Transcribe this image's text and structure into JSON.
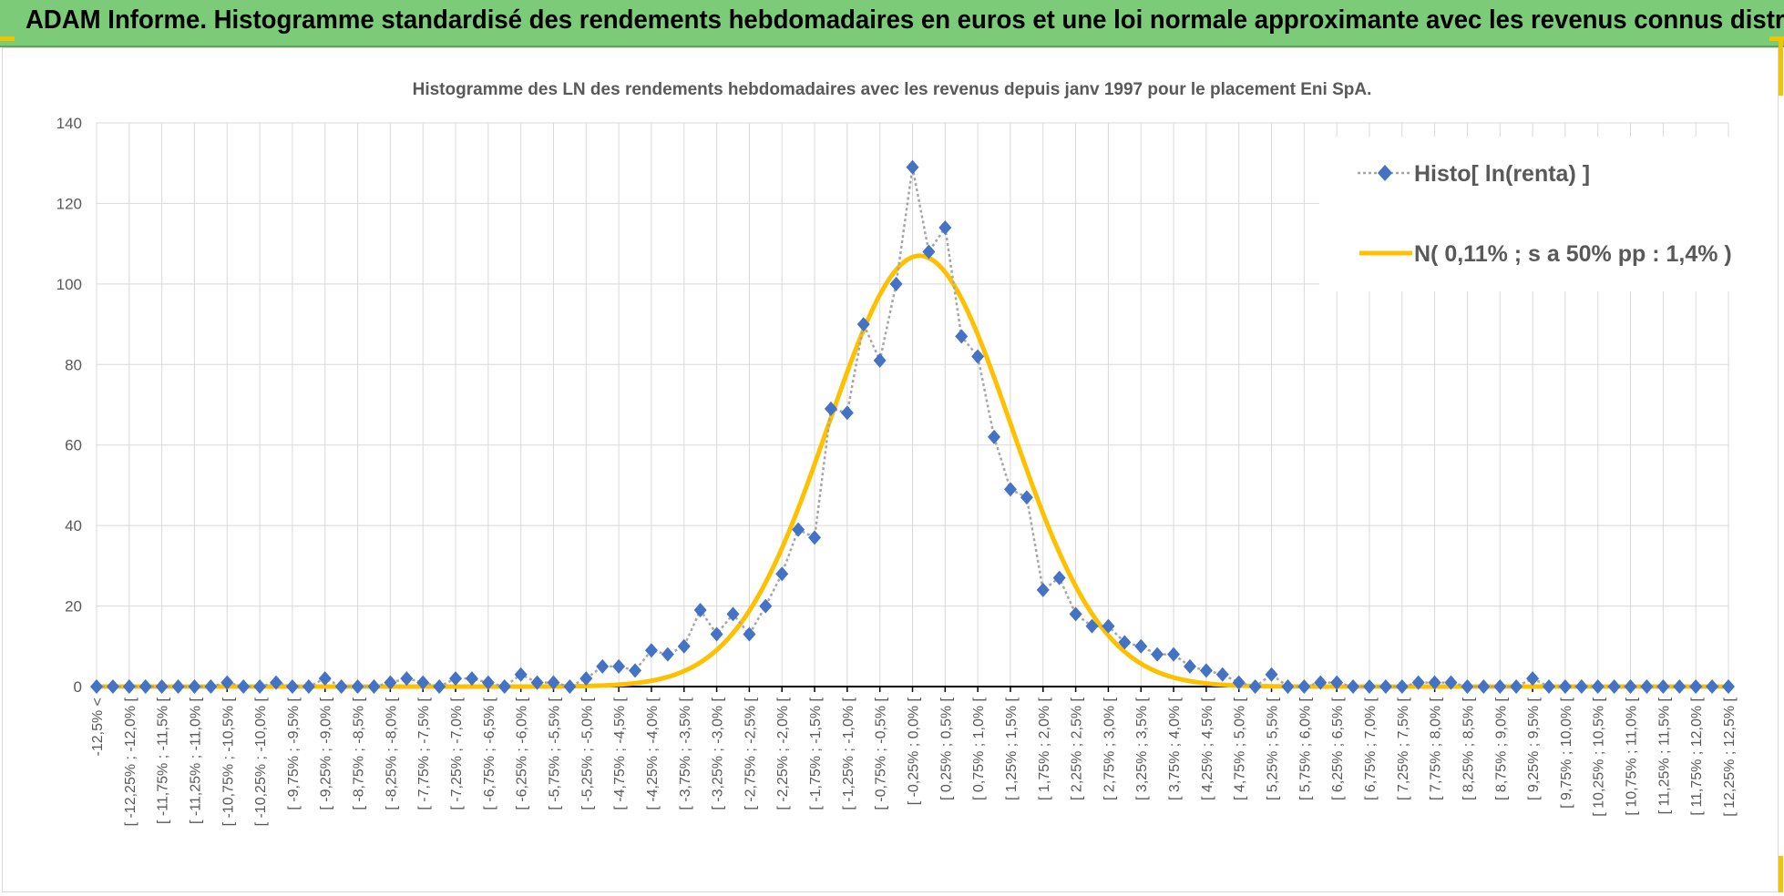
{
  "header": {
    "title": "ADAM Informe. Histogramme standardisé des rendements hebdomadaires en euros et une loi normale approximante avec les revenus connus distribués"
  },
  "colors": {
    "header_bg": "#7ccb79",
    "histo": "#4472c4",
    "normal": "#ffc000",
    "grid": "#d9d9d9",
    "axis": "#000000",
    "text": "#595959"
  },
  "chart_data": {
    "type": "line",
    "title": "Histogramme des LN des rendements hebdomadaires avec les revenus depuis janv 1997 pour le placement Eni SpA.",
    "xlabel": "",
    "ylabel": "",
    "ylim": [
      0,
      140
    ],
    "yticks": [
      0,
      20,
      40,
      60,
      80,
      100,
      120,
      140
    ],
    "grid": true,
    "legend_position": "top-right",
    "categories": [
      "-12,5% <",
      "[ -12,25% ; -12,0% [",
      "[ -11,75% ; -11,5% [",
      "[ -11,25% ; -11,0% [",
      "[ -10,75% ; -10,5% [",
      "[ -10,25% ; -10,0% [",
      "[ -9,75% ; -9,5% [",
      "[ -9,25% ; -9,0% [",
      "[ -8,75% ; -8,5% [",
      "[ -8,25% ; -8,0% [",
      "[ -7,75% ; -7,5% [",
      "[ -7,25% ; -7,0% [",
      "[ -6,75% ; -6,5% [",
      "[ -6,25% ; -6,0% [",
      "[ -5,75% ; -5,5% [",
      "[ -5,25% ; -5,0% [",
      "[ -4,75% ; -4,5% [",
      "[ -4,25% ; -4,0% [",
      "[ -3,75% ; -3,5% [",
      "[ -3,25% ; -3,0% [",
      "[ -2,75% ; -2,5% [",
      "[ -2,25% ; -2,0% [",
      "[ -1,75% ; -1,5% [",
      "[ -1,25% ; -1,0% [",
      "[ -0,75% ; -0,5% [",
      "[ -0,25% ; 0,0% [",
      "[ 0,25% ; 0,5% [",
      "[ 0,75% ; 1,0% [",
      "[ 1,25% ; 1,5% [",
      "[ 1,75% ; 2,0% [",
      "[ 2,25% ; 2,5% [",
      "[ 2,75% ; 3,0% [",
      "[ 3,25% ; 3,5% [",
      "[ 3,75% ; 4,0% [",
      "[ 4,25% ; 4,5% [",
      "[ 4,75% ; 5,0% [",
      "[ 5,25% ; 5,5% [",
      "[ 5,75% ; 6,0% [",
      "[ 6,25% ; 6,5% [",
      "[ 6,75% ; 7,0% [",
      "[ 7,25% ; 7,5% [",
      "[ 7,75% ; 8,0% [",
      "[ 8,25% ; 8,5% [",
      "[ 8,75% ; 9,0% [",
      "[ 9,25% ; 9,5% [",
      "[ 9,75% ; 10,0% [",
      "[ 10,25% ; 10,5% [",
      "[ 10,75% ; 11,0% [",
      "[ 11,25% ; 11,5% [",
      "[ 11,75% ; 12,0% [",
      "[ 12,25% ; 12,5% ["
    ],
    "x": [
      -12.5,
      -12.25,
      -12.0,
      -11.75,
      -11.5,
      -11.25,
      -11.0,
      -10.75,
      -10.5,
      -10.25,
      -10.0,
      -9.75,
      -9.5,
      -9.25,
      -9.0,
      -8.75,
      -8.5,
      -8.25,
      -8.0,
      -7.75,
      -7.5,
      -7.25,
      -7.0,
      -6.75,
      -6.5,
      -6.25,
      -6.0,
      -5.75,
      -5.5,
      -5.25,
      -5.0,
      -4.75,
      -4.5,
      -4.25,
      -4.0,
      -3.75,
      -3.5,
      -3.25,
      -3.0,
      -2.75,
      -2.5,
      -2.25,
      -2.0,
      -1.75,
      -1.5,
      -1.25,
      -1.0,
      -0.75,
      -0.5,
      -0.25,
      0.0,
      0.25,
      0.5,
      0.75,
      1.0,
      1.25,
      1.5,
      1.75,
      2.0,
      2.25,
      2.5,
      2.75,
      3.0,
      3.25,
      3.5,
      3.75,
      4.0,
      4.25,
      4.5,
      4.75,
      5.0,
      5.25,
      5.5,
      5.75,
      6.0,
      6.25,
      6.5,
      6.75,
      7.0,
      7.25,
      7.5,
      7.75,
      8.0,
      8.25,
      8.5,
      8.75,
      9.0,
      9.25,
      9.5,
      9.75,
      10.0,
      10.25,
      10.5,
      10.75,
      11.0,
      11.25,
      11.5,
      11.75,
      12.0,
      12.25,
      12.5
    ],
    "series": [
      {
        "name": "Histo[ ln(renta) ]",
        "style": "dotted line with diamond markers",
        "values": [
          0,
          0,
          0,
          0,
          0,
          0,
          0,
          0,
          1,
          0,
          0,
          1,
          0,
          0,
          2,
          0,
          0,
          0,
          1,
          2,
          1,
          0,
          2,
          2,
          1,
          0,
          3,
          1,
          1,
          0,
          2,
          5,
          5,
          4,
          9,
          8,
          10,
          19,
          13,
          18,
          13,
          20,
          28,
          39,
          37,
          69,
          68,
          90,
          81,
          100,
          129,
          108,
          114,
          87,
          82,
          62,
          49,
          47,
          24,
          27,
          18,
          15,
          15,
          11,
          10,
          8,
          8,
          5,
          4,
          3,
          1,
          0,
          3,
          0,
          0,
          1,
          1,
          0,
          0,
          0,
          0,
          1,
          1,
          1,
          0,
          0,
          0,
          0,
          2,
          0,
          0,
          0,
          0,
          0,
          0,
          0,
          0,
          0,
          0,
          0,
          0
        ]
      },
      {
        "name": "N( 0,11% ; s a 50% pp : 1,4% )",
        "style": "solid line",
        "mean": 0.11,
        "sd": 1.4,
        "peak": 107
      }
    ]
  }
}
